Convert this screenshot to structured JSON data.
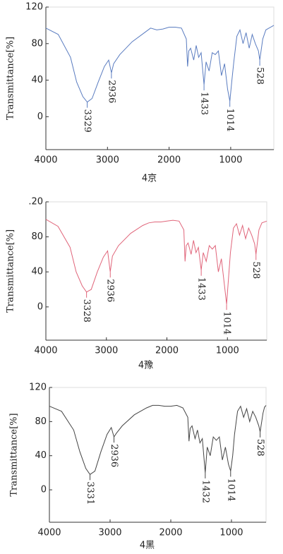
{
  "chart_data": [
    {
      "type": "line",
      "title": "4京",
      "y_label": "Transmittance[%]",
      "color": "#5a7cc0",
      "xlim": [
        4000,
        300
      ],
      "ylim": [
        -36,
        120
      ],
      "xticks": [
        4000,
        3000,
        2000,
        1000
      ],
      "yticks": [
        0,
        40,
        80,
        120
      ],
      "x": [
        4000,
        3800,
        3600,
        3500,
        3400,
        3329,
        3250,
        3150,
        3050,
        2980,
        2936,
        2900,
        2800,
        2600,
        2400,
        2300,
        2200,
        2100,
        2000,
        1900,
        1800,
        1720,
        1700,
        1680,
        1650,
        1600,
        1560,
        1520,
        1480,
        1433,
        1400,
        1350,
        1300,
        1250,
        1200,
        1150,
        1100,
        1050,
        1014,
        980,
        950,
        900,
        850,
        800,
        750,
        700,
        650,
        600,
        550,
        528,
        480,
        430,
        300
      ],
      "values": [
        97,
        90,
        65,
        38,
        22,
        16,
        20,
        38,
        55,
        62,
        48,
        58,
        68,
        82,
        92,
        97,
        95,
        96,
        98,
        98,
        97,
        85,
        55,
        72,
        75,
        62,
        78,
        65,
        70,
        35,
        60,
        50,
        70,
        68,
        72,
        45,
        58,
        30,
        17,
        40,
        60,
        88,
        95,
        80,
        92,
        75,
        90,
        80,
        72,
        62,
        85,
        95,
        100
      ],
      "annotations": [
        {
          "x": 3329,
          "y": 16
        },
        {
          "x": 2936,
          "y": 48
        },
        {
          "x": 1433,
          "y": 35
        },
        {
          "x": 1014,
          "y": 17
        },
        {
          "x": 528,
          "y": 62
        }
      ]
    },
    {
      "type": "line",
      "title": "4豫",
      "y_label": "Transmittance[%]",
      "color": "#e0657a",
      "xlim": [
        4000,
        350
      ],
      "ylim": [
        -38,
        120
      ],
      "xticks": [
        4000,
        3000,
        2000,
        1000
      ],
      "yticks": [
        0,
        40,
        80,
        {
          "value": 120,
          "label": ".20"
        }
      ],
      "x": [
        4000,
        3800,
        3600,
        3500,
        3400,
        3328,
        3250,
        3150,
        3050,
        2980,
        2936,
        2900,
        2800,
        2600,
        2400,
        2300,
        2200,
        2100,
        2000,
        1900,
        1800,
        1720,
        1700,
        1680,
        1650,
        1600,
        1560,
        1520,
        1480,
        1433,
        1400,
        1350,
        1300,
        1250,
        1200,
        1150,
        1100,
        1050,
        1014,
        980,
        950,
        900,
        850,
        800,
        750,
        700,
        650,
        600,
        550,
        528,
        480,
        430,
        350
      ],
      "values": [
        100,
        92,
        68,
        40,
        24,
        17,
        20,
        40,
        57,
        64,
        40,
        58,
        70,
        84,
        93,
        96,
        97,
        97,
        98,
        99,
        98,
        88,
        52,
        70,
        73,
        60,
        76,
        62,
        68,
        42,
        62,
        52,
        70,
        66,
        70,
        40,
        55,
        25,
        3,
        35,
        62,
        90,
        95,
        82,
        93,
        78,
        90,
        82,
        72,
        60,
        88,
        96,
        98
      ],
      "annotations": [
        {
          "x": 3328,
          "y": 17
        },
        {
          "x": 2936,
          "y": 40
        },
        {
          "x": 1433,
          "y": 42
        },
        {
          "x": 1014,
          "y": 3
        },
        {
          "x": 528,
          "y": 60
        }
      ]
    },
    {
      "type": "line",
      "title": "4黑",
      "y_label": "Transmittance[%]",
      "color": "#444444",
      "xlim": [
        4000,
        430
      ],
      "ylim": [
        -38,
        120
      ],
      "xticks": [
        4000,
        3000,
        2000,
        1000
      ],
      "yticks": [
        0,
        40,
        80,
        120
      ],
      "x": [
        4000,
        3800,
        3600,
        3500,
        3400,
        3331,
        3250,
        3150,
        3050,
        2980,
        2936,
        2900,
        2800,
        2600,
        2400,
        2300,
        2200,
        2100,
        2000,
        1900,
        1800,
        1720,
        1700,
        1680,
        1650,
        1600,
        1560,
        1520,
        1480,
        1432,
        1400,
        1350,
        1300,
        1250,
        1200,
        1150,
        1100,
        1050,
        1014,
        980,
        950,
        900,
        850,
        800,
        750,
        700,
        650,
        600,
        550,
        528,
        480,
        455,
        430
      ],
      "values": [
        98,
        92,
        70,
        45,
        25,
        18,
        22,
        45,
        65,
        73,
        62,
        66,
        75,
        88,
        96,
        99,
        99,
        98,
        98,
        99,
        96,
        85,
        57,
        72,
        75,
        60,
        70,
        55,
        60,
        20,
        50,
        40,
        62,
        58,
        62,
        35,
        50,
        30,
        22,
        40,
        65,
        92,
        98,
        85,
        95,
        80,
        92,
        85,
        75,
        68,
        90,
        97,
        99
      ],
      "annotations": [
        {
          "x": 3331,
          "y": 18
        },
        {
          "x": 2936,
          "y": 62
        },
        {
          "x": 1432,
          "y": 20
        },
        {
          "x": 1014,
          "y": 22
        },
        {
          "x": 528,
          "y": 68
        }
      ]
    }
  ]
}
